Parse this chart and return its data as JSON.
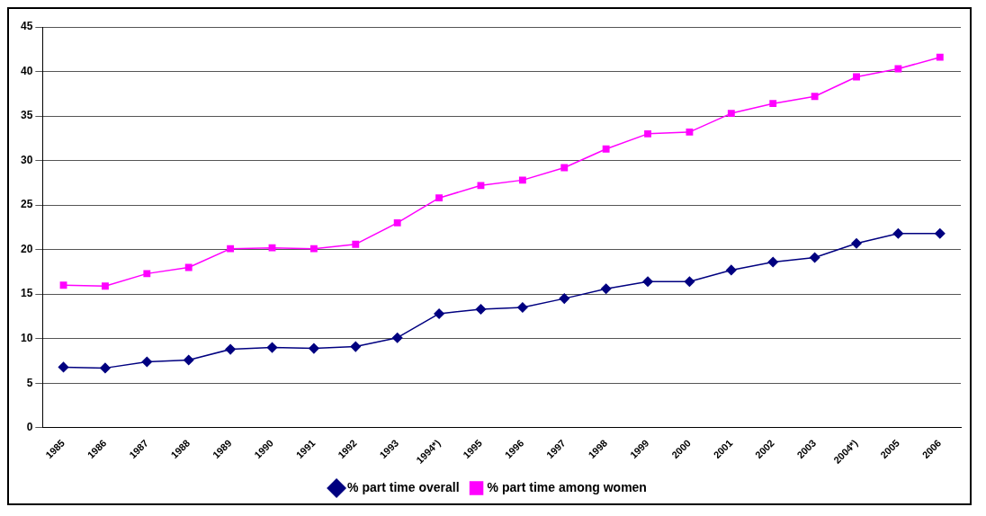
{
  "chart_data": {
    "type": "line",
    "categories": [
      "1985",
      "1986",
      "1987",
      "1988",
      "1989",
      "1990",
      "1991",
      "1992",
      "1993",
      "1994*)",
      "1995",
      "1996",
      "1997",
      "1998",
      "1999",
      "2000",
      "2001",
      "2002",
      "2003",
      "2004*)",
      "2005",
      "2006"
    ],
    "series": [
      {
        "name": "% part time overall",
        "color": "#000080",
        "marker": "diamond",
        "values": [
          6.8,
          6.7,
          7.4,
          7.6,
          8.8,
          9.0,
          8.9,
          9.1,
          10.1,
          12.8,
          13.3,
          13.5,
          14.5,
          15.6,
          16.4,
          16.4,
          17.7,
          18.6,
          19.1,
          20.7,
          21.8,
          21.8
        ]
      },
      {
        "name": "% part time among women",
        "color": "#ff00ff",
        "marker": "square",
        "values": [
          16.0,
          15.9,
          17.3,
          18.0,
          20.1,
          20.2,
          20.1,
          20.6,
          23.0,
          25.8,
          27.2,
          27.8,
          29.2,
          31.3,
          33.0,
          33.2,
          35.3,
          36.4,
          37.2,
          39.4,
          40.3,
          41.6
        ]
      }
    ],
    "ylim": [
      0,
      45
    ],
    "yticks": [
      0,
      5,
      10,
      15,
      20,
      25,
      30,
      35,
      40,
      45
    ],
    "grid": "y",
    "legend": "bottom"
  }
}
